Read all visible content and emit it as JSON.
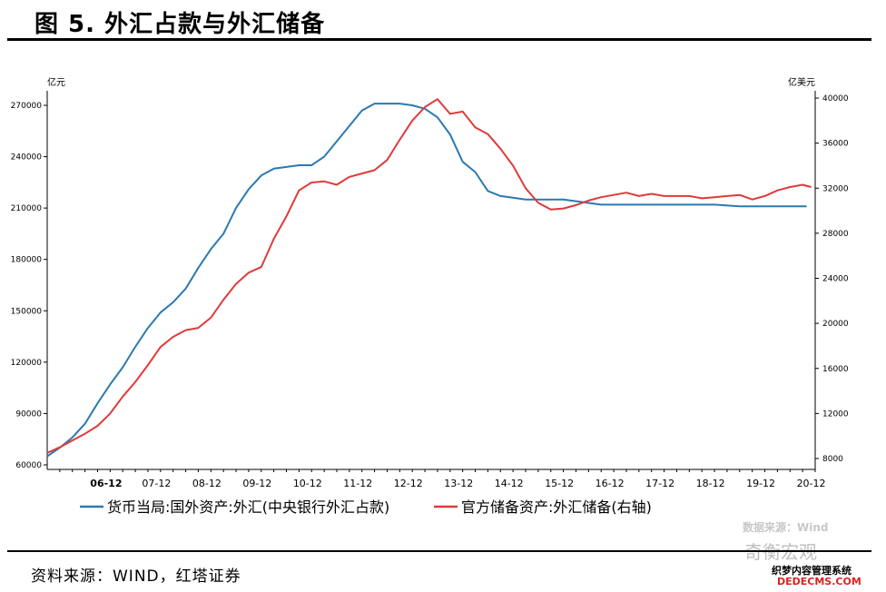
{
  "figure": {
    "title": "图 5. 外汇占款与外汇储备",
    "source": "资料来源：WIND，红塔证券"
  },
  "watermark": {
    "data_source": "数据来源：Wind",
    "account": "奇衡宏观",
    "site_cn": "织梦内容管理系统",
    "site_en": "DEDECMS.COM"
  },
  "chart_data": {
    "type": "line",
    "left_unit": "亿元",
    "right_unit": "亿美元",
    "x_labels": [
      "06-12",
      "07-12",
      "08-12",
      "09-12",
      "10-12",
      "11-12",
      "12-12",
      "13-12",
      "14-12",
      "15-12",
      "16-12",
      "17-12",
      "18-12",
      "19-12",
      "20-12"
    ],
    "x_range": [
      2005.75,
      2021.0
    ],
    "left_ylim": [
      60000,
      270000
    ],
    "left_ticks": [
      60000,
      90000,
      120000,
      150000,
      180000,
      210000,
      240000,
      270000
    ],
    "right_ylim": [
      8000,
      40000
    ],
    "right_ticks": [
      8000,
      12000,
      16000,
      20000,
      24000,
      28000,
      32000,
      36000,
      40000
    ],
    "colors": {
      "left": "#2a7ab0",
      "right": "#e03a3a"
    },
    "series": [
      {
        "name": "货币当局:国外资产:外汇(中央银行外汇占款)",
        "axis": "left",
        "x": [
          2005.75,
          2006.0,
          2006.25,
          2006.5,
          2006.75,
          2007.0,
          2007.25,
          2007.5,
          2007.75,
          2008.0,
          2008.25,
          2008.5,
          2008.75,
          2009.0,
          2009.25,
          2009.5,
          2009.75,
          2010.0,
          2010.25,
          2010.5,
          2010.75,
          2011.0,
          2011.25,
          2011.5,
          2011.75,
          2012.0,
          2012.25,
          2012.5,
          2012.75,
          2013.0,
          2013.25,
          2013.5,
          2013.75,
          2014.0,
          2014.25,
          2014.5,
          2014.75,
          2015.0,
          2015.25,
          2015.5,
          2015.75,
          2016.0,
          2016.25,
          2016.5,
          2016.75,
          2017.0,
          2017.5,
          2018.0,
          2018.5,
          2019.0,
          2019.5,
          2020.0,
          2020.5,
          2020.83
        ],
        "y": [
          65000,
          70000,
          76000,
          84000,
          96000,
          107000,
          117000,
          129000,
          140000,
          149000,
          155000,
          163000,
          175000,
          186000,
          195000,
          210000,
          221000,
          229000,
          233000,
          234000,
          235000,
          235000,
          240000,
          249000,
          258000,
          267000,
          271000,
          271000,
          271000,
          270000,
          268000,
          263000,
          253000,
          237000,
          231000,
          220000,
          217000,
          216000,
          215000,
          215000,
          215000,
          215000,
          214000,
          213000,
          212000,
          212000,
          212000,
          212000,
          212000,
          212000,
          211000,
          211000,
          211000,
          211000
        ]
      },
      {
        "name": "官方储备资产:外汇储备(右轴)",
        "axis": "right",
        "x": [
          2005.75,
          2006.0,
          2006.25,
          2006.5,
          2006.75,
          2007.0,
          2007.25,
          2007.5,
          2007.75,
          2008.0,
          2008.25,
          2008.5,
          2008.75,
          2009.0,
          2009.25,
          2009.5,
          2009.75,
          2010.0,
          2010.25,
          2010.5,
          2010.75,
          2011.0,
          2011.25,
          2011.5,
          2011.75,
          2012.0,
          2012.25,
          2012.5,
          2012.75,
          2013.0,
          2013.25,
          2013.5,
          2013.75,
          2014.0,
          2014.25,
          2014.5,
          2014.75,
          2015.0,
          2015.25,
          2015.5,
          2015.75,
          2016.0,
          2016.25,
          2016.5,
          2016.75,
          2017.0,
          2017.25,
          2017.5,
          2017.75,
          2018.0,
          2018.25,
          2018.5,
          2018.75,
          2019.0,
          2019.25,
          2019.5,
          2019.75,
          2020.0,
          2020.25,
          2020.5,
          2020.75,
          2020.92
        ],
        "y": [
          8500,
          9000,
          9600,
          10200,
          10900,
          12000,
          13500,
          14800,
          16300,
          17900,
          18800,
          19400,
          19600,
          20500,
          22100,
          23500,
          24500,
          25000,
          27500,
          29500,
          31800,
          32500,
          32600,
          32300,
          33000,
          33300,
          33600,
          34500,
          36300,
          38000,
          39200,
          39900,
          38600,
          38800,
          37400,
          36800,
          35500,
          34000,
          32000,
          30700,
          30100,
          30200,
          30500,
          30900,
          31200,
          31400,
          31600,
          31300,
          31500,
          31300,
          31300,
          31300,
          31100,
          31200,
          31300,
          31400,
          31000,
          31300,
          31800,
          32100,
          32300,
          32100
        ]
      }
    ],
    "legend_position": "bottom",
    "grid": false
  }
}
